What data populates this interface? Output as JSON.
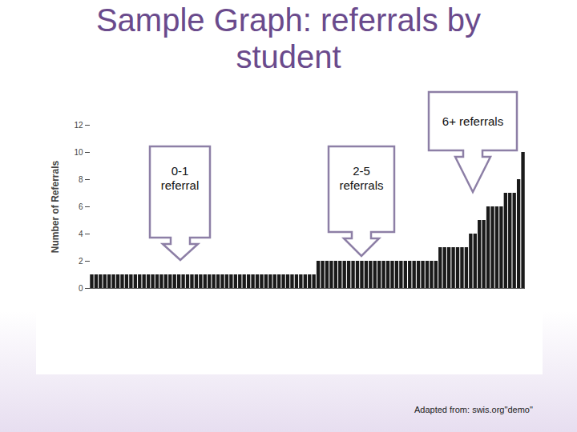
{
  "chart_data": {
    "type": "bar",
    "title": "Sample Graph: referrals by student",
    "y_label": "Number of Referrals",
    "categories": [
      null,
      null,
      null,
      null,
      null,
      null,
      null,
      null,
      null,
      null,
      null,
      null,
      null,
      null,
      null,
      null,
      null,
      null,
      null,
      null,
      null,
      null,
      null,
      null,
      null,
      null,
      null,
      null,
      null,
      null,
      null,
      null,
      null,
      null,
      null,
      null,
      null,
      null,
      null,
      null,
      null,
      null,
      null,
      null,
      null,
      null,
      null,
      null,
      null,
      null,
      null,
      null,
      null,
      null,
      null,
      null,
      null,
      null,
      null,
      null,
      null,
      null,
      null,
      null,
      null,
      null,
      null,
      null,
      null,
      null,
      null,
      null,
      null,
      null,
      null,
      null,
      null,
      null,
      null,
      null,
      null,
      null,
      null,
      null,
      null,
      null,
      null,
      null,
      null,
      null,
      null,
      null,
      null,
      null,
      null,
      null,
      null,
      null,
      null,
      null
    ],
    "values": [
      1,
      1,
      1,
      1,
      1,
      1,
      1,
      1,
      1,
      1,
      1,
      1,
      1,
      1,
      1,
      1,
      1,
      1,
      1,
      1,
      1,
      1,
      1,
      1,
      1,
      1,
      1,
      1,
      1,
      1,
      1,
      1,
      1,
      1,
      1,
      1,
      1,
      1,
      1,
      1,
      1,
      1,
      1,
      1,
      1,
      1,
      1,
      1,
      1,
      1,
      1,
      1,
      2,
      2,
      2,
      2,
      2,
      2,
      2,
      2,
      2,
      2,
      2,
      2,
      2,
      2,
      2,
      2,
      2,
      2,
      2,
      2,
      2,
      2,
      2,
      2,
      2,
      2,
      2,
      2,
      3,
      3,
      3,
      3,
      3,
      3,
      3,
      4,
      4,
      5,
      5,
      6,
      6,
      6,
      6,
      7,
      7,
      7,
      8,
      10
    ],
    "color": "#1a1a1a",
    "ylim": [
      0,
      12
    ],
    "yticks": [
      0,
      2,
      4,
      6,
      8,
      10,
      12
    ],
    "grid": false,
    "annotations": [
      "0-1 referral",
      "2-5 referrals",
      "6+ referrals"
    ],
    "caption": "Adapted from: swis.org\"demo\""
  }
}
